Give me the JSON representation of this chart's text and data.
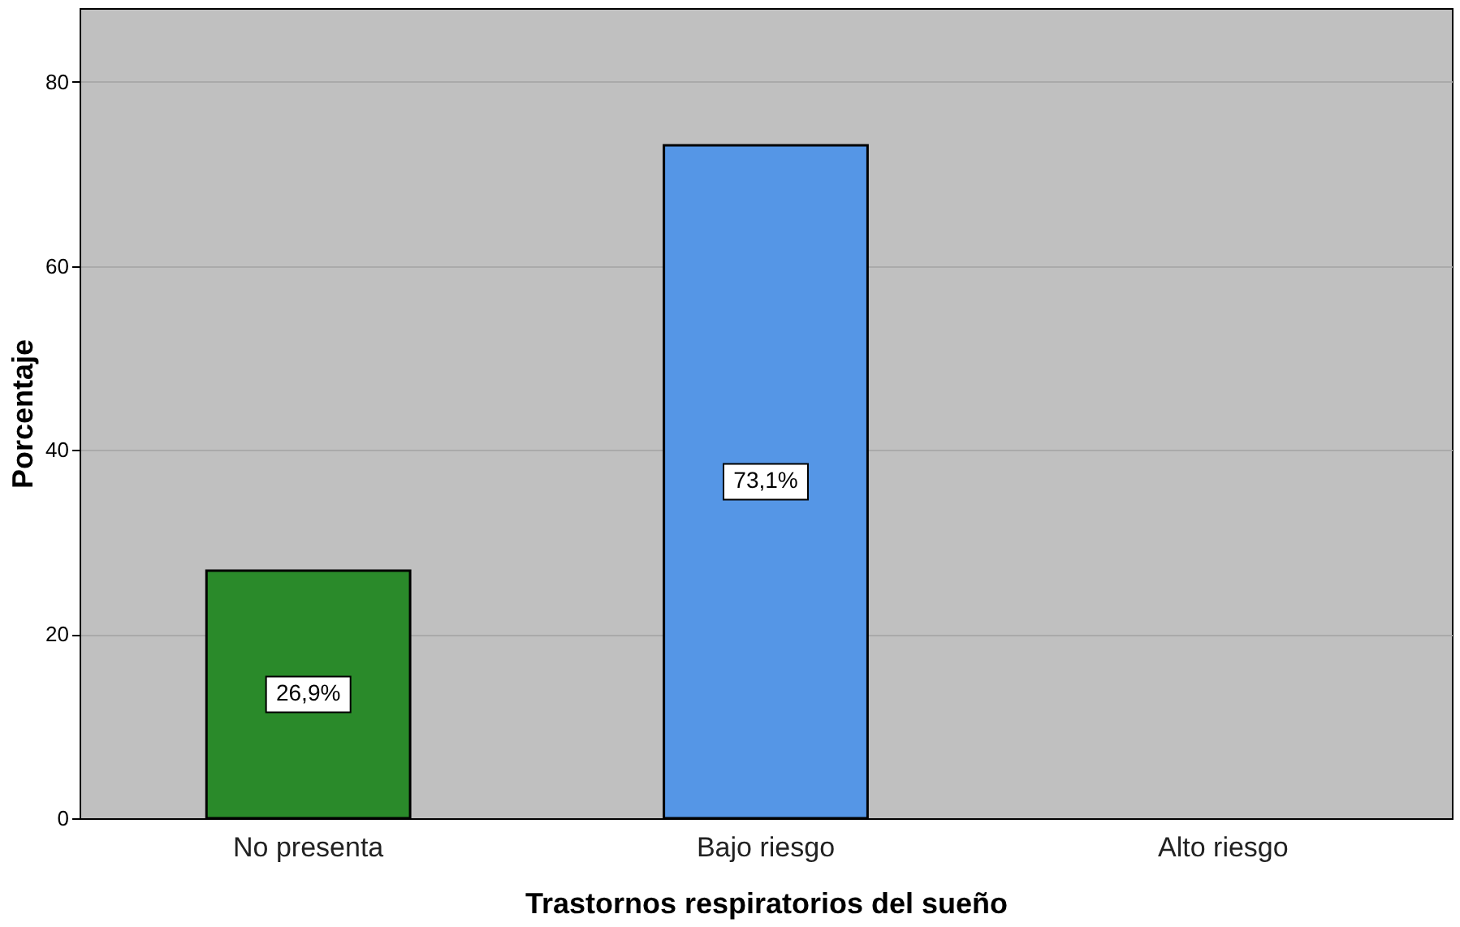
{
  "chart_data": {
    "type": "bar",
    "xlabel": "Trastornos respiratorios del sueño",
    "ylabel": "Porcentaje",
    "categories": [
      "No presenta",
      "Bajo riesgo",
      "Alto riesgo"
    ],
    "values": [
      26.9,
      73.1,
      null
    ],
    "colors": [
      "#2a8a2a",
      "#5596e6",
      null
    ],
    "value_labels": [
      "26,9%",
      "73,1%",
      null
    ],
    "ylim": [
      0,
      88
    ],
    "yticks": [
      0,
      20,
      40,
      60,
      80
    ],
    "grid": "y"
  }
}
